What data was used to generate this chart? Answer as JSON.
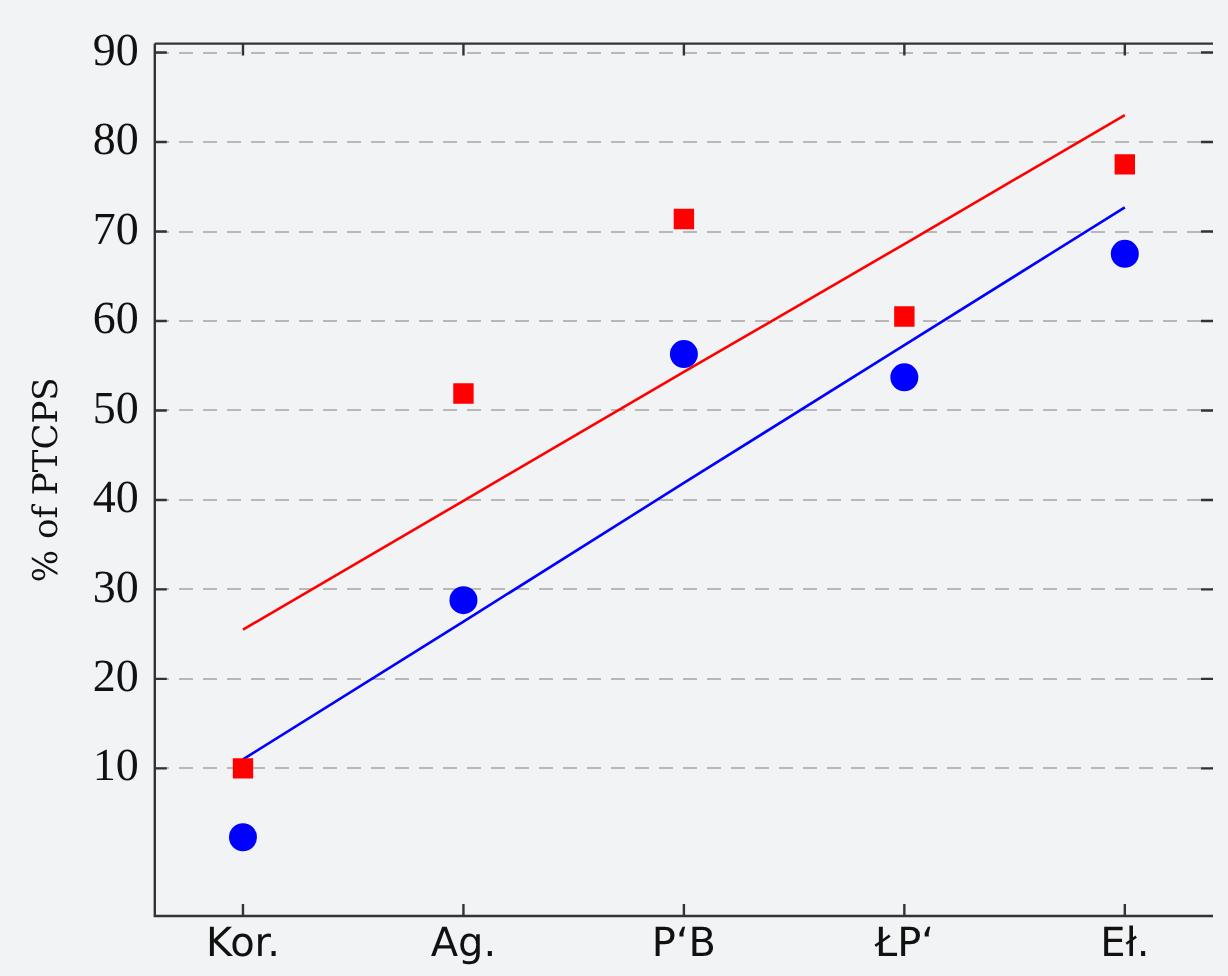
{
  "chart_data": {
    "type": "scatter",
    "ylabel": "% of PTCPS",
    "categories": [
      "Kor.",
      "Ag.",
      "P‘B",
      "ŁP‘",
      "Eł."
    ],
    "ylim": [
      -6.5,
      91
    ],
    "yticks": [
      10,
      20,
      30,
      40,
      50,
      60,
      70,
      80,
      90
    ],
    "grid": "y",
    "legend": false,
    "series": [
      {
        "marker": "circle",
        "color": "#0000ff",
        "values": [
          2.3,
          28.8,
          56.3,
          53.7,
          67.5
        ]
      },
      {
        "marker": "square",
        "color": "#ff0000",
        "values": [
          10,
          51.9,
          71.4,
          60.5,
          77.5
        ]
      },
      {
        "type": "line",
        "marker": "none",
        "color": "#0000ff",
        "values": [
          11.0,
          26.4,
          41.9,
          57.3,
          72.7
        ]
      },
      {
        "type": "line",
        "marker": "none",
        "color": "#ff0000",
        "values": [
          25.5,
          39.9,
          54.3,
          68.6,
          83.0
        ]
      }
    ]
  }
}
